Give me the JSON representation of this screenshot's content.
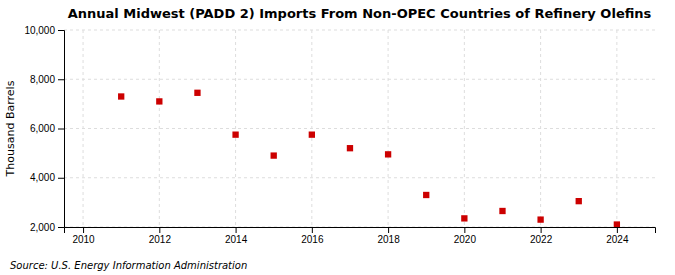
{
  "chart_data": {
    "type": "scatter",
    "title": "Annual Midwest (PADD 2) Imports From Non-OPEC Countries of Refinery Olefins",
    "ylabel": "Thousand Barrels",
    "annotations": [
      "Source: U.S. Energy Information Administration"
    ],
    "x": [
      2011,
      2012,
      2013,
      2014,
      2015,
      2016,
      2017,
      2018,
      2019,
      2020,
      2021,
      2022,
      2023,
      2024
    ],
    "values": [
      7300,
      7100,
      7450,
      5750,
      4900,
      5750,
      5200,
      4950,
      3300,
      2350,
      2650,
      2300,
      3050,
      2100
    ],
    "color": "#cc0000",
    "marker": "square",
    "xlim": [
      2009.5,
      2025
    ],
    "ylim": [
      2000,
      10000
    ],
    "xticks": [
      2010,
      2012,
      2014,
      2016,
      2018,
      2020,
      2022,
      2024
    ],
    "yticks": [
      {
        "value": 2000,
        "label": "2,000"
      },
      {
        "value": 4000,
        "label": "4,000"
      },
      {
        "value": 6000,
        "label": "6,000"
      },
      {
        "value": 8000,
        "label": "8,000"
      },
      {
        "value": 10000,
        "label": "10,000"
      }
    ],
    "grid": true
  }
}
